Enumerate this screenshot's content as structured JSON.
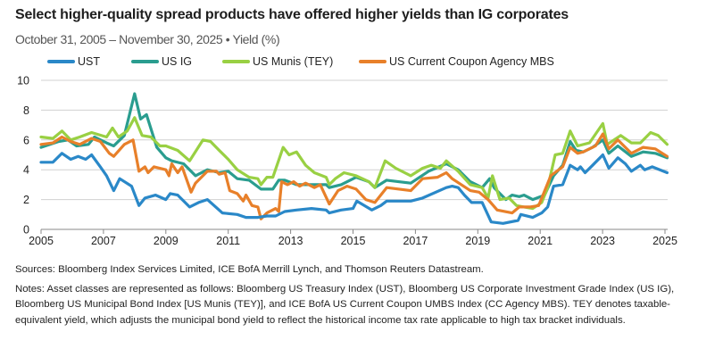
{
  "title": "Select higher-quality spread products have offered higher yields than IG corporates",
  "subtitle": "October 31, 2005 – November 30, 2025 • Yield (%)",
  "sources": "Sources: Bloomberg Index Services Limited, ICE BofA Merrill Lynch, and Thomson Reuters Datastream.",
  "notes": "Notes: Asset classes are represented as follows: Bloomberg US Treasury Index (UST), Bloomberg US Corporate Investment Grade Index (US IG), Bloomberg US Municipal Bond Index [US Munis (TEY)], and ICE BofA US Current Coupon UMBS Index (CC Agency MBS). TEY denotes taxable-equivalent yield, which adjusts the municipal bond yield to reflect the historical income tax rate applicable to high tax bracket individuals.",
  "chart_data": {
    "type": "line",
    "title": "Select higher-quality spread products have offered higher yields than IG corporates",
    "xlabel": "",
    "ylabel": "Yield (%)",
    "xlim": [
      2005,
      2025.1
    ],
    "ylim": [
      0,
      10
    ],
    "x_ticks": [
      "2005",
      "2007",
      "2009",
      "2011",
      "2013",
      "2015",
      "2017",
      "2019",
      "2021",
      "2023",
      "2025"
    ],
    "y_ticks": [
      "0",
      "2",
      "4",
      "6",
      "8",
      "10"
    ],
    "grid": "horizontal",
    "legend_position": "top",
    "series": [
      {
        "name": "UST",
        "color": "#2a88c8",
        "points": [
          [
            2005.0,
            4.5
          ],
          [
            2005.38,
            4.5
          ],
          [
            2005.67,
            5.1
          ],
          [
            2005.95,
            4.7
          ],
          [
            2006.19,
            4.9
          ],
          [
            2006.43,
            4.7
          ],
          [
            2006.62,
            5.0
          ],
          [
            2006.9,
            4.2
          ],
          [
            2007.1,
            3.6
          ],
          [
            2007.33,
            2.6
          ],
          [
            2007.52,
            3.4
          ],
          [
            2007.9,
            2.9
          ],
          [
            2008.14,
            1.6
          ],
          [
            2008.33,
            2.1
          ],
          [
            2008.67,
            2.3
          ],
          [
            2009.0,
            2.0
          ],
          [
            2009.14,
            2.4
          ],
          [
            2009.38,
            2.3
          ],
          [
            2009.76,
            1.5
          ],
          [
            2010.05,
            1.8
          ],
          [
            2010.33,
            2.0
          ],
          [
            2010.81,
            1.1
          ],
          [
            2011.29,
            1.0
          ],
          [
            2011.57,
            0.8
          ],
          [
            2011.95,
            0.8
          ],
          [
            2012.24,
            0.9
          ],
          [
            2012.52,
            0.9
          ],
          [
            2012.81,
            1.2
          ],
          [
            2013.19,
            1.3
          ],
          [
            2013.67,
            1.4
          ],
          [
            2014.14,
            1.3
          ],
          [
            2014.24,
            1.1
          ],
          [
            2014.62,
            1.3
          ],
          [
            2015.0,
            1.4
          ],
          [
            2015.12,
            1.9
          ],
          [
            2015.6,
            1.3
          ],
          [
            2015.89,
            1.6
          ],
          [
            2016.08,
            1.9
          ],
          [
            2016.85,
            1.9
          ],
          [
            2017.23,
            2.1
          ],
          [
            2017.99,
            2.8
          ],
          [
            2018.18,
            2.9
          ],
          [
            2018.37,
            2.8
          ],
          [
            2018.57,
            2.3
          ],
          [
            2018.8,
            1.8
          ],
          [
            2019.14,
            1.8
          ],
          [
            2019.43,
            0.5
          ],
          [
            2019.81,
            0.4
          ],
          [
            2020.29,
            0.6
          ],
          [
            2020.38,
            1.0
          ],
          [
            2020.76,
            0.8
          ],
          [
            2021.05,
            1.1
          ],
          [
            2021.24,
            1.5
          ],
          [
            2021.43,
            2.9
          ],
          [
            2021.72,
            3.0
          ],
          [
            2021.96,
            4.3
          ],
          [
            2022.2,
            4.0
          ],
          [
            2022.29,
            4.2
          ],
          [
            2022.44,
            3.8
          ],
          [
            2022.68,
            4.3
          ],
          [
            2023.01,
            5.0
          ],
          [
            2023.2,
            4.1
          ],
          [
            2023.49,
            4.8
          ],
          [
            2023.73,
            4.4
          ],
          [
            2023.92,
            3.9
          ],
          [
            2024.21,
            4.3
          ],
          [
            2024.35,
            4.0
          ],
          [
            2024.59,
            4.2
          ],
          [
            2025.07,
            3.8
          ]
        ]
      },
      {
        "name": "US IG",
        "color": "#2a9d8f",
        "points": [
          [
            2005.0,
            5.5
          ],
          [
            2005.57,
            5.9
          ],
          [
            2005.86,
            6.0
          ],
          [
            2006.14,
            5.6
          ],
          [
            2006.52,
            5.7
          ],
          [
            2006.71,
            6.2
          ],
          [
            2007.1,
            5.8
          ],
          [
            2007.33,
            5.6
          ],
          [
            2007.67,
            6.3
          ],
          [
            2008.0,
            9.1
          ],
          [
            2008.19,
            7.4
          ],
          [
            2008.38,
            7.7
          ],
          [
            2008.71,
            5.5
          ],
          [
            2009.0,
            4.8
          ],
          [
            2009.19,
            4.6
          ],
          [
            2009.57,
            4.4
          ],
          [
            2009.95,
            3.6
          ],
          [
            2010.33,
            4.0
          ],
          [
            2010.71,
            3.8
          ],
          [
            2011.0,
            3.9
          ],
          [
            2011.29,
            3.4
          ],
          [
            2011.67,
            3.3
          ],
          [
            2012.05,
            2.7
          ],
          [
            2012.43,
            2.7
          ],
          [
            2012.62,
            3.3
          ],
          [
            2012.81,
            3.3
          ],
          [
            2013.19,
            3.0
          ],
          [
            2013.76,
            3.0
          ],
          [
            2014.14,
            3.0
          ],
          [
            2014.24,
            2.8
          ],
          [
            2014.62,
            3.0
          ],
          [
            2015.1,
            3.5
          ],
          [
            2015.51,
            3.2
          ],
          [
            2015.7,
            2.8
          ],
          [
            2016.08,
            3.3
          ],
          [
            2016.46,
            3.2
          ],
          [
            2016.85,
            3.1
          ],
          [
            2017.42,
            3.9
          ],
          [
            2017.99,
            4.4
          ],
          [
            2018.37,
            4.0
          ],
          [
            2018.76,
            3.2
          ],
          [
            2019.14,
            2.8
          ],
          [
            2019.38,
            3.4
          ],
          [
            2019.52,
            2.8
          ],
          [
            2019.9,
            2.0
          ],
          [
            2020.1,
            2.3
          ],
          [
            2020.33,
            2.2
          ],
          [
            2020.48,
            2.3
          ],
          [
            2020.76,
            2.0
          ],
          [
            2021.14,
            2.3
          ],
          [
            2021.43,
            3.6
          ],
          [
            2021.72,
            4.3
          ],
          [
            2021.96,
            5.9
          ],
          [
            2022.15,
            5.3
          ],
          [
            2022.38,
            5.2
          ],
          [
            2022.68,
            5.5
          ],
          [
            2023.01,
            6.0
          ],
          [
            2023.2,
            5.1
          ],
          [
            2023.49,
            5.6
          ],
          [
            2023.92,
            4.9
          ],
          [
            2024.3,
            5.2
          ],
          [
            2024.69,
            5.1
          ],
          [
            2025.07,
            4.8
          ]
        ]
      },
      {
        "name": "US Munis (TEY)",
        "color": "#99d043",
        "points": [
          [
            2005.0,
            6.2
          ],
          [
            2005.38,
            6.1
          ],
          [
            2005.67,
            6.6
          ],
          [
            2005.95,
            6.0
          ],
          [
            2006.24,
            6.2
          ],
          [
            2006.62,
            6.5
          ],
          [
            2007.1,
            6.2
          ],
          [
            2007.29,
            6.8
          ],
          [
            2007.48,
            6.2
          ],
          [
            2007.76,
            6.6
          ],
          [
            2008.0,
            7.5
          ],
          [
            2008.24,
            6.3
          ],
          [
            2008.52,
            6.2
          ],
          [
            2008.81,
            5.6
          ],
          [
            2009.0,
            5.6
          ],
          [
            2009.38,
            5.3
          ],
          [
            2009.76,
            4.6
          ],
          [
            2010.19,
            6.0
          ],
          [
            2010.43,
            5.9
          ],
          [
            2010.71,
            5.3
          ],
          [
            2011.0,
            4.7
          ],
          [
            2011.29,
            4.0
          ],
          [
            2011.67,
            3.5
          ],
          [
            2011.95,
            3.4
          ],
          [
            2012.05,
            3.0
          ],
          [
            2012.24,
            3.5
          ],
          [
            2012.43,
            3.5
          ],
          [
            2012.76,
            5.5
          ],
          [
            2012.95,
            5.0
          ],
          [
            2013.19,
            5.2
          ],
          [
            2013.48,
            4.3
          ],
          [
            2013.76,
            3.8
          ],
          [
            2014.14,
            3.5
          ],
          [
            2014.24,
            3.0
          ],
          [
            2014.43,
            3.4
          ],
          [
            2014.71,
            3.8
          ],
          [
            2015.1,
            3.6
          ],
          [
            2015.51,
            3.2
          ],
          [
            2015.7,
            2.8
          ],
          [
            2016.03,
            4.6
          ],
          [
            2016.37,
            4.1
          ],
          [
            2016.85,
            3.6
          ],
          [
            2017.23,
            4.1
          ],
          [
            2017.51,
            4.3
          ],
          [
            2017.8,
            4.1
          ],
          [
            2017.99,
            4.6
          ],
          [
            2018.37,
            3.9
          ],
          [
            2018.76,
            3.0
          ],
          [
            2019.14,
            2.8
          ],
          [
            2019.33,
            2.1
          ],
          [
            2019.47,
            3.6
          ],
          [
            2019.71,
            2.0
          ],
          [
            2020.0,
            2.1
          ],
          [
            2020.24,
            1.6
          ],
          [
            2020.48,
            1.5
          ],
          [
            2020.76,
            1.4
          ],
          [
            2021.05,
            1.8
          ],
          [
            2021.24,
            2.8
          ],
          [
            2021.48,
            5.0
          ],
          [
            2021.72,
            5.1
          ],
          [
            2021.96,
            6.6
          ],
          [
            2022.2,
            5.6
          ],
          [
            2022.58,
            5.8
          ],
          [
            2023.01,
            7.1
          ],
          [
            2023.15,
            5.7
          ],
          [
            2023.58,
            6.3
          ],
          [
            2023.92,
            5.8
          ],
          [
            2024.21,
            5.8
          ],
          [
            2024.54,
            6.5
          ],
          [
            2024.78,
            6.3
          ],
          [
            2025.07,
            5.7
          ]
        ]
      },
      {
        "name": "US Current Coupon Agency MBS",
        "color": "#e8802a",
        "points": [
          [
            2005.0,
            5.7
          ],
          [
            2005.38,
            5.8
          ],
          [
            2005.67,
            6.2
          ],
          [
            2005.95,
            5.9
          ],
          [
            2006.24,
            5.7
          ],
          [
            2006.62,
            6.1
          ],
          [
            2006.9,
            5.9
          ],
          [
            2007.19,
            5.1
          ],
          [
            2007.33,
            4.9
          ],
          [
            2007.67,
            5.7
          ],
          [
            2007.95,
            6.0
          ],
          [
            2008.14,
            3.9
          ],
          [
            2008.33,
            4.2
          ],
          [
            2008.43,
            3.8
          ],
          [
            2008.62,
            4.2
          ],
          [
            2009.0,
            4.0
          ],
          [
            2009.1,
            3.6
          ],
          [
            2009.19,
            4.4
          ],
          [
            2009.38,
            3.8
          ],
          [
            2009.52,
            4.2
          ],
          [
            2009.81,
            2.5
          ],
          [
            2009.95,
            3.1
          ],
          [
            2010.33,
            3.9
          ],
          [
            2010.62,
            3.9
          ],
          [
            2010.71,
            3.7
          ],
          [
            2010.9,
            3.8
          ],
          [
            2011.05,
            2.6
          ],
          [
            2011.29,
            2.4
          ],
          [
            2011.48,
            1.9
          ],
          [
            2011.57,
            2.3
          ],
          [
            2011.76,
            1.6
          ],
          [
            2011.95,
            1.5
          ],
          [
            2012.05,
            0.7
          ],
          [
            2012.24,
            1.1
          ],
          [
            2012.52,
            1.4
          ],
          [
            2012.62,
            1.2
          ],
          [
            2012.71,
            3.2
          ],
          [
            2012.9,
            3.0
          ],
          [
            2013.1,
            3.2
          ],
          [
            2013.29,
            2.9
          ],
          [
            2013.48,
            3.1
          ],
          [
            2013.76,
            2.8
          ],
          [
            2013.95,
            3.0
          ],
          [
            2014.24,
            1.7
          ],
          [
            2014.52,
            2.6
          ],
          [
            2014.81,
            2.9
          ],
          [
            2015.1,
            2.7
          ],
          [
            2015.41,
            2.0
          ],
          [
            2015.7,
            1.8
          ],
          [
            2016.08,
            2.8
          ],
          [
            2016.85,
            2.6
          ],
          [
            2017.23,
            3.4
          ],
          [
            2017.71,
            3.5
          ],
          [
            2017.99,
            3.8
          ],
          [
            2018.18,
            3.4
          ],
          [
            2018.76,
            2.6
          ],
          [
            2019.04,
            2.5
          ],
          [
            2019.33,
            2.0
          ],
          [
            2019.62,
            1.3
          ],
          [
            2020.1,
            1.1
          ],
          [
            2020.33,
            1.5
          ],
          [
            2020.67,
            1.5
          ],
          [
            2020.95,
            1.6
          ],
          [
            2021.34,
            3.6
          ],
          [
            2021.72,
            4.2
          ],
          [
            2021.96,
            5.5
          ],
          [
            2022.2,
            5.1
          ],
          [
            2022.38,
            5.2
          ],
          [
            2022.77,
            5.6
          ],
          [
            2023.01,
            6.4
          ],
          [
            2023.2,
            5.4
          ],
          [
            2023.49,
            6.0
          ],
          [
            2023.92,
            5.1
          ],
          [
            2024.3,
            5.5
          ],
          [
            2024.69,
            5.4
          ],
          [
            2025.07,
            4.9
          ]
        ]
      }
    ]
  }
}
